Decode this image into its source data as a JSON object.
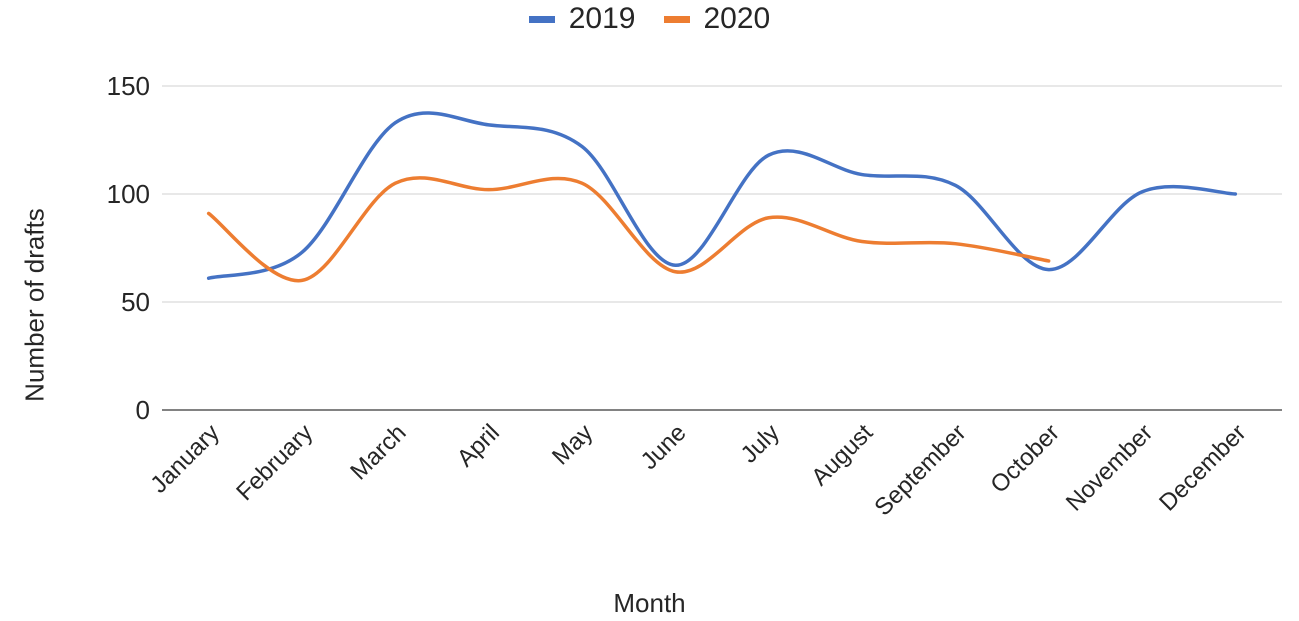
{
  "chart_data": {
    "type": "line",
    "title": "",
    "xlabel": "Month",
    "ylabel": "Number of drafts",
    "categories": [
      "January",
      "February",
      "March",
      "April",
      "May",
      "June",
      "July",
      "August",
      "September",
      "October",
      "November",
      "December"
    ],
    "ylim": [
      0,
      150
    ],
    "yticks": [
      0,
      50,
      100,
      150
    ],
    "grid": true,
    "legend_position": "top-center",
    "series": [
      {
        "name": "2019",
        "color": "#4472C4",
        "values": [
          61,
          73,
          133,
          132,
          122,
          67,
          118,
          109,
          104,
          65,
          101,
          100
        ]
      },
      {
        "name": "2020",
        "color": "#ED7D31",
        "values": [
          91,
          60,
          105,
          102,
          105,
          64,
          89,
          78,
          77,
          69,
          null,
          null
        ]
      }
    ]
  }
}
